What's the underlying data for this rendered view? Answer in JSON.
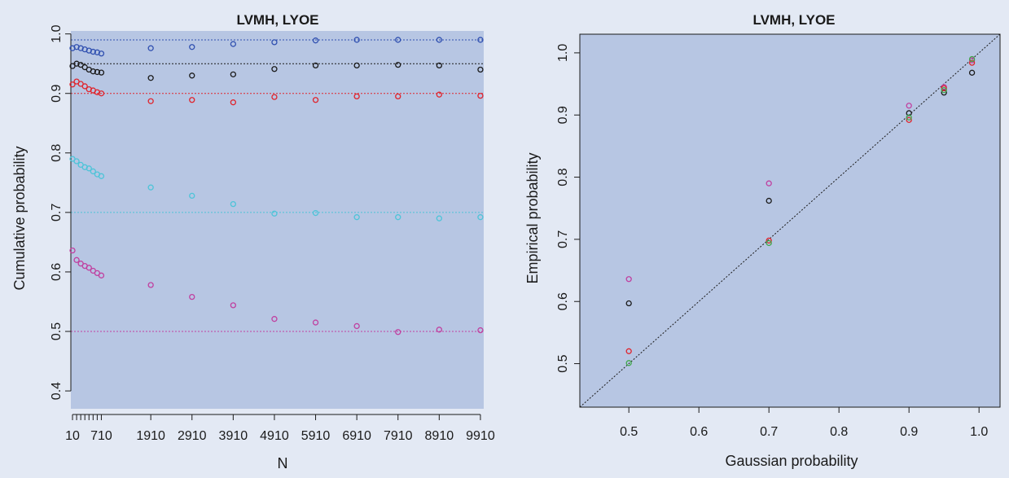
{
  "chart_data": [
    {
      "type": "scatter",
      "title": "LVMH, LYOE",
      "xlabel": "N",
      "ylabel": "Cumulative probability",
      "xlim": [
        -30,
        10030
      ],
      "ylim": [
        0.37,
        1.005
      ],
      "x_tick_values": [
        10,
        110,
        210,
        310,
        410,
        510,
        610,
        710,
        1910,
        2910,
        3910,
        4910,
        5910,
        6910,
        7910,
        8910,
        9910
      ],
      "x_tick_labels": [
        "10",
        "",
        "",
        "",
        "",
        "",
        "",
        "710",
        "1910",
        "2910",
        "3910",
        "4910",
        "5910",
        "6910",
        "7910",
        "8910",
        "9910"
      ],
      "y_ticks": [
        "0.4",
        "0.5",
        "0.6",
        "0.7",
        "0.8",
        "0.9",
        "1.0"
      ],
      "x": [
        10,
        110,
        210,
        310,
        410,
        510,
        610,
        710,
        1910,
        2910,
        3910,
        4910,
        5910,
        6910,
        7910,
        8910,
        9910
      ],
      "series": [
        {
          "color": "#3050b0",
          "reference": 0.99,
          "values": [
            0.976,
            0.978,
            0.976,
            0.974,
            0.972,
            0.97,
            0.969,
            0.967,
            0.976,
            0.978,
            0.983,
            0.986,
            0.989,
            0.99,
            0.99,
            0.99,
            0.99
          ]
        },
        {
          "color": "#1a1a1a",
          "reference": 0.95,
          "values": [
            0.946,
            0.95,
            0.948,
            0.944,
            0.94,
            0.937,
            0.936,
            0.935,
            0.926,
            0.93,
            0.932,
            0.941,
            0.947,
            0.947,
            0.948,
            0.947,
            0.94
          ]
        },
        {
          "color": "#e0242c",
          "reference": 0.9,
          "values": [
            0.915,
            0.92,
            0.916,
            0.912,
            0.907,
            0.905,
            0.902,
            0.9,
            0.887,
            0.889,
            0.885,
            0.894,
            0.889,
            0.895,
            0.895,
            0.898,
            0.896
          ]
        },
        {
          "color": "#4dc4d8",
          "reference": 0.7,
          "values": [
            0.79,
            0.786,
            0.78,
            0.776,
            0.774,
            0.769,
            0.764,
            0.761,
            0.742,
            0.728,
            0.714,
            0.698,
            0.699,
            0.692,
            0.692,
            0.69,
            0.692
          ]
        },
        {
          "color": "#c040a0",
          "reference": 0.5,
          "values": [
            0.636,
            0.62,
            0.614,
            0.61,
            0.607,
            0.602,
            0.598,
            0.594,
            0.578,
            0.558,
            0.544,
            0.521,
            0.515,
            0.509,
            0.499,
            0.503,
            0.502
          ]
        }
      ]
    },
    {
      "type": "scatter",
      "title": "LVMH, LYOE",
      "xlabel": "Gaussian probability",
      "ylabel": "Empirical probability",
      "xlim": [
        0.43,
        1.03
      ],
      "ylim": [
        0.43,
        1.03
      ],
      "x_ticks": [
        "0.5",
        "0.6",
        "0.7",
        "0.8",
        "0.9",
        "1.0"
      ],
      "y_ticks": [
        "0.5",
        "0.6",
        "0.7",
        "0.8",
        "0.9",
        "1.0"
      ],
      "diagonal": true,
      "series": [
        {
          "color": "#c040a0",
          "points": [
            [
              0.5,
              0.636
            ],
            [
              0.7,
              0.79
            ],
            [
              0.9,
              0.915
            ],
            [
              0.95,
              0.945
            ],
            [
              0.99,
              0.988
            ]
          ]
        },
        {
          "color": "#1a1a1a",
          "points": [
            [
              0.5,
              0.597
            ],
            [
              0.7,
              0.762
            ],
            [
              0.9,
              0.903
            ],
            [
              0.95,
              0.936
            ],
            [
              0.99,
              0.968
            ]
          ]
        },
        {
          "color": "#e0242c",
          "points": [
            [
              0.5,
              0.52
            ],
            [
              0.7,
              0.698
            ],
            [
              0.9,
              0.892
            ],
            [
              0.95,
              0.943
            ],
            [
              0.99,
              0.984
            ]
          ]
        },
        {
          "color": "#3fa84a",
          "points": [
            [
              0.5,
              0.501
            ],
            [
              0.7,
              0.694
            ],
            [
              0.9,
              0.896
            ],
            [
              0.95,
              0.94
            ],
            [
              0.99,
              0.99
            ]
          ]
        }
      ]
    }
  ]
}
